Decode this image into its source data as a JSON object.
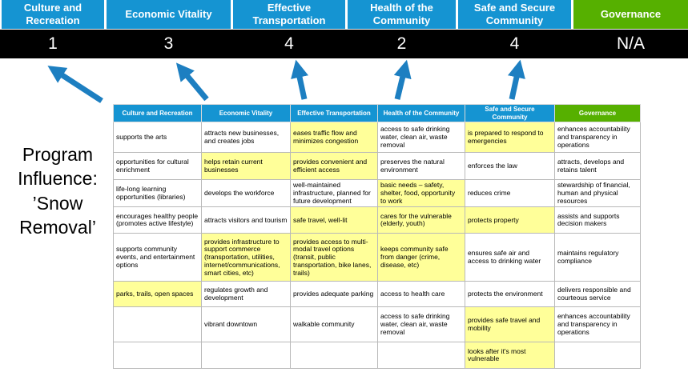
{
  "title": "Program Influence: ’Snow Removal’",
  "scoreboard": {
    "columns": [
      {
        "label": "Culture and Recreation",
        "score": "1",
        "theme": "blue"
      },
      {
        "label": "Economic Vitality",
        "score": "3",
        "theme": "blue"
      },
      {
        "label": "Effective Transportation",
        "score": "4",
        "theme": "blue"
      },
      {
        "label": "Health of the Community",
        "score": "2",
        "theme": "blue"
      },
      {
        "label": "Safe and Secure Community",
        "score": "4",
        "theme": "blue"
      },
      {
        "label": "Governance",
        "score": "N/A",
        "theme": "green"
      }
    ]
  },
  "matrix": {
    "headers": [
      {
        "label": "Culture and Recreation",
        "theme": "blue"
      },
      {
        "label": "Economic Vitality",
        "theme": "blue"
      },
      {
        "label": "Effective Transportation",
        "theme": "blue"
      },
      {
        "label": "Health of the Community",
        "theme": "blue"
      },
      {
        "label": "Safe and Secure Community",
        "theme": "blue"
      },
      {
        "label": "Governance",
        "theme": "green"
      }
    ],
    "rows": [
      [
        {
          "text": "supports the arts",
          "highlight": false
        },
        {
          "text": "attracts new businesses, and creates jobs",
          "highlight": false
        },
        {
          "text": "eases traffic flow and minimizes congestion",
          "highlight": true
        },
        {
          "text": "access to safe drinking water, clean air, waste removal",
          "highlight": false
        },
        {
          "text": "is prepared to respond to emergencies",
          "highlight": true
        },
        {
          "text": "enhances accountability and transparency in operations",
          "highlight": false
        }
      ],
      [
        {
          "text": "opportunities for cultural enrichment",
          "highlight": false
        },
        {
          "text": "helps retain current businesses",
          "highlight": true
        },
        {
          "text": "provides convenient and efficient access",
          "highlight": true
        },
        {
          "text": "preserves the natural environment",
          "highlight": false
        },
        {
          "text": "enforces the law",
          "highlight": false
        },
        {
          "text": "attracts, develops and retains talent",
          "highlight": false
        }
      ],
      [
        {
          "text": "life-long learning opportunities (libraries)",
          "highlight": false
        },
        {
          "text": "develops the workforce",
          "highlight": false
        },
        {
          "text": "well-maintained infrastructure, planned for future development",
          "highlight": false
        },
        {
          "text": "basic needs – safety, shelter, food, opportunity to work",
          "highlight": true
        },
        {
          "text": "reduces crime",
          "highlight": false
        },
        {
          "text": "stewardship of financial, human and physical resources",
          "highlight": false
        }
      ],
      [
        {
          "text": "encourages healthy people (promotes active lifestyle)",
          "highlight": false
        },
        {
          "text": "attracts visitors and tourism",
          "highlight": false
        },
        {
          "text": "safe travel, well-lit",
          "highlight": true
        },
        {
          "text": "cares for the vulnerable (elderly, youth)",
          "highlight": true
        },
        {
          "text": "protects property",
          "highlight": true
        },
        {
          "text": "assists and supports decision makers",
          "highlight": false
        }
      ],
      [
        {
          "text": "supports community events, and entertainment options",
          "highlight": false
        },
        {
          "text": "provides infrastructure to support commerce (transportation, utilities, internet/communications, smart cities, etc)",
          "highlight": true
        },
        {
          "text": "provides access to multi-modal travel options (transit, public transportation, bike lanes, trails)",
          "highlight": true
        },
        {
          "text": "keeps community safe from danger (crime, disease, etc)",
          "highlight": true
        },
        {
          "text": "ensures safe air and access to drinking water",
          "highlight": false
        },
        {
          "text": "maintains regulatory compliance",
          "highlight": false
        }
      ],
      [
        {
          "text": "parks, trails, open spaces",
          "highlight": true
        },
        {
          "text": "regulates growth and development",
          "highlight": false
        },
        {
          "text": "provides adequate parking",
          "highlight": false
        },
        {
          "text": "access to health care",
          "highlight": false
        },
        {
          "text": "protects the environment",
          "highlight": false
        },
        {
          "text": "delivers responsible and courteous service",
          "highlight": false
        }
      ],
      [
        {
          "text": "",
          "highlight": false
        },
        {
          "text": "vibrant downtown",
          "highlight": false
        },
        {
          "text": "walkable community",
          "highlight": false
        },
        {
          "text": "access to safe drinking water, clean air, waste removal",
          "highlight": false
        },
        {
          "text": "provides safe travel and mobility",
          "highlight": true
        },
        {
          "text": "enhances accountability and transparency in operations",
          "highlight": false
        }
      ],
      [
        {
          "text": "",
          "highlight": false
        },
        {
          "text": "",
          "highlight": false
        },
        {
          "text": "",
          "highlight": false
        },
        {
          "text": "",
          "highlight": false
        },
        {
          "text": "looks after it's most vulnerable",
          "highlight": true
        },
        {
          "text": "",
          "highlight": false
        }
      ]
    ]
  },
  "colors": {
    "header_blue": "#1594d2",
    "header_green": "#56b000",
    "highlight_yellow": "#ffff99",
    "score_band_bg": "#000000",
    "arrow_blue": "#1d7fc1"
  }
}
